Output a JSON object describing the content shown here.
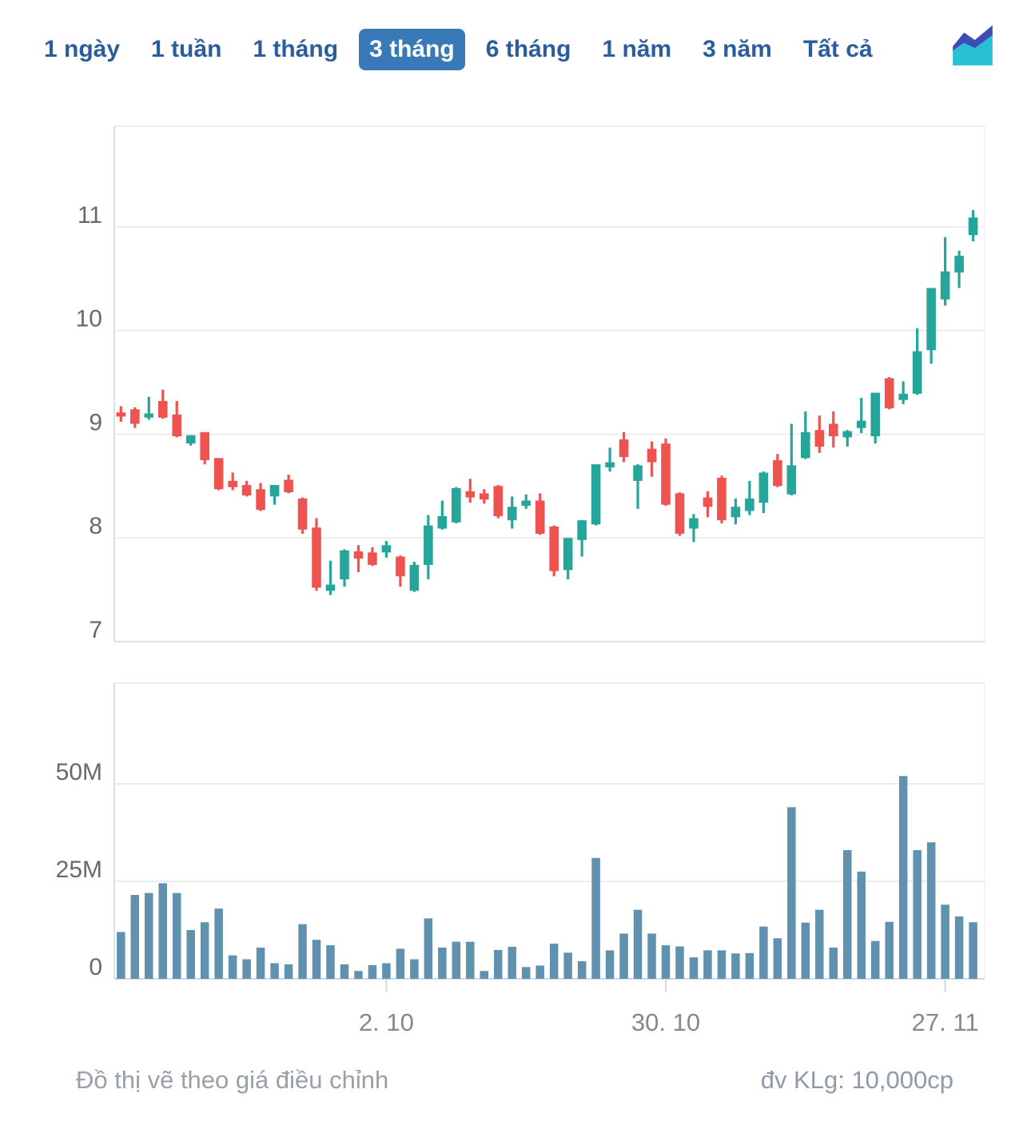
{
  "tabs": {
    "items": [
      {
        "label": "1 ngày",
        "selected": false
      },
      {
        "label": "1 tuần",
        "selected": false
      },
      {
        "label": "1 tháng",
        "selected": false
      },
      {
        "label": "3 tháng",
        "selected": true
      },
      {
        "label": "6 tháng",
        "selected": false
      },
      {
        "label": "1 năm",
        "selected": false
      },
      {
        "label": "3 năm",
        "selected": false
      },
      {
        "label": "Tất cả",
        "selected": false
      }
    ],
    "chart_type_icon": "area-chart-icon"
  },
  "footer": {
    "left": "Đồ thị vẽ theo giá điều chỉnh",
    "right": "đv KLg: 10,000cp"
  },
  "colors": {
    "up": "#26a69a",
    "down": "#ef5350",
    "volume_bar": "#6092af",
    "tab_text": "#2b5d9e",
    "tab_selected_bg": "#3a79b7",
    "tab_selected_text": "#ffffff",
    "grid": "#ececec",
    "panel_border_gray": "#e8e8e8",
    "panel_border_blue": "#ccd6e5",
    "axis_text": "#66696d",
    "date_text": "#85898d",
    "icon_indigo": "#3d4db7",
    "icon_cyan": "#28c0d4"
  },
  "chart_data": {
    "type": "candlestick",
    "panels": [
      "price",
      "volume"
    ],
    "price_axis": {
      "tick_labels": [
        "11",
        "10",
        "9",
        "8",
        "7"
      ],
      "tick_values": [
        11,
        10,
        9,
        8,
        7
      ],
      "min": 7.0,
      "max": 11.97,
      "grid": true
    },
    "volume_axis": {
      "tick_labels": [
        "50M",
        "25M",
        "0"
      ],
      "tick_values": [
        50,
        25,
        0
      ],
      "min": 0,
      "max": 75,
      "grid": true
    },
    "x_ticks": [
      {
        "label": "2. 10",
        "candle_index": 19
      },
      {
        "label": "30. 10",
        "candle_index": 39
      },
      {
        "label": "27. 11",
        "candle_index": 59
      }
    ],
    "ohlc_format": [
      "open",
      "high",
      "low",
      "close",
      "volume_millions"
    ],
    "candles": [
      [
        9.21,
        9.27,
        9.12,
        9.17,
        12.0
      ],
      [
        9.24,
        9.26,
        9.06,
        9.1,
        21.5
      ],
      [
        9.16,
        9.36,
        9.14,
        9.2,
        22.0
      ],
      [
        9.32,
        9.43,
        9.15,
        9.16,
        24.5
      ],
      [
        9.19,
        9.32,
        8.97,
        8.98,
        22.0
      ],
      [
        8.91,
        8.99,
        8.89,
        8.99,
        12.5
      ],
      [
        9.02,
        9.02,
        8.71,
        8.75,
        14.5
      ],
      [
        8.77,
        8.77,
        8.46,
        8.47,
        18.0
      ],
      [
        8.55,
        8.63,
        8.46,
        8.49,
        6.0
      ],
      [
        8.51,
        8.55,
        8.4,
        8.41,
        5.0
      ],
      [
        8.47,
        8.53,
        8.26,
        8.27,
        8.0
      ],
      [
        8.4,
        8.5,
        8.32,
        8.51,
        4.0
      ],
      [
        8.56,
        8.61,
        8.43,
        8.44,
        3.7
      ],
      [
        8.38,
        8.39,
        8.04,
        8.08,
        14.0
      ],
      [
        8.1,
        8.19,
        7.49,
        7.52,
        10.0
      ],
      [
        7.49,
        7.78,
        7.45,
        7.55,
        8.6
      ],
      [
        7.6,
        7.89,
        7.53,
        7.88,
        3.7
      ],
      [
        7.87,
        7.93,
        7.67,
        7.8,
        2.0
      ],
      [
        7.86,
        7.91,
        7.73,
        7.74,
        3.5
      ],
      [
        7.86,
        7.97,
        7.81,
        7.93,
        4.0
      ],
      [
        7.82,
        7.83,
        7.53,
        7.63,
        7.7
      ],
      [
        7.49,
        7.77,
        7.48,
        7.74,
        5.0
      ],
      [
        7.74,
        8.22,
        7.6,
        8.12,
        15.5
      ],
      [
        8.09,
        8.36,
        8.08,
        8.21,
        8.0
      ],
      [
        8.15,
        8.49,
        8.14,
        8.48,
        9.5
      ],
      [
        8.45,
        8.57,
        8.34,
        8.39,
        9.5
      ],
      [
        8.43,
        8.47,
        8.33,
        8.37,
        2.0
      ],
      [
        8.5,
        8.51,
        8.19,
        8.21,
        7.4
      ],
      [
        8.17,
        8.4,
        8.09,
        8.3,
        8.2
      ],
      [
        8.31,
        8.42,
        8.28,
        8.36,
        3.0
      ],
      [
        8.36,
        8.43,
        8.03,
        8.04,
        3.4
      ],
      [
        8.11,
        8.12,
        7.63,
        7.68,
        9.0
      ],
      [
        7.69,
        8.0,
        7.6,
        8.0,
        6.7
      ],
      [
        7.98,
        8.17,
        7.82,
        8.17,
        4.5
      ],
      [
        8.13,
        8.71,
        8.12,
        8.71,
        31.0
      ],
      [
        8.68,
        8.87,
        8.64,
        8.73,
        7.3
      ],
      [
        8.95,
        9.02,
        8.73,
        8.78,
        11.6
      ],
      [
        8.55,
        8.71,
        8.28,
        8.7,
        17.7
      ],
      [
        8.86,
        8.93,
        8.59,
        8.73,
        11.6
      ],
      [
        8.91,
        8.96,
        8.31,
        8.32,
        8.6
      ],
      [
        8.43,
        8.44,
        8.02,
        8.04,
        8.3
      ],
      [
        8.09,
        8.23,
        7.96,
        8.19,
        5.5
      ],
      [
        8.39,
        8.45,
        8.2,
        8.3,
        7.3
      ],
      [
        8.58,
        8.6,
        8.14,
        8.17,
        7.3
      ],
      [
        8.2,
        8.38,
        8.13,
        8.3,
        6.5
      ],
      [
        8.26,
        8.55,
        8.22,
        8.38,
        6.6
      ],
      [
        8.34,
        8.64,
        8.24,
        8.63,
        13.4
      ],
      [
        8.75,
        8.81,
        8.49,
        8.5,
        10.4
      ],
      [
        8.42,
        9.1,
        8.41,
        8.7,
        44.0
      ],
      [
        8.77,
        9.22,
        8.76,
        9.02,
        14.4
      ],
      [
        9.04,
        9.18,
        8.82,
        8.88,
        17.7
      ],
      [
        9.1,
        9.22,
        8.87,
        8.98,
        8.0
      ],
      [
        8.97,
        9.04,
        8.88,
        9.03,
        33.0
      ],
      [
        9.06,
        9.35,
        9.01,
        9.13,
        27.5
      ],
      [
        8.98,
        9.4,
        8.91,
        9.4,
        9.7
      ],
      [
        9.54,
        9.55,
        9.24,
        9.25,
        14.6
      ],
      [
        9.33,
        9.51,
        9.29,
        9.39,
        52.0
      ],
      [
        9.39,
        10.02,
        9.38,
        9.8,
        33.0
      ],
      [
        9.81,
        10.41,
        9.68,
        10.41,
        35.0
      ],
      [
        10.3,
        10.9,
        10.24,
        10.57,
        19.0
      ],
      [
        10.56,
        10.77,
        10.41,
        10.72,
        16.0
      ],
      [
        10.92,
        11.16,
        10.86,
        11.09,
        14.5
      ]
    ]
  }
}
